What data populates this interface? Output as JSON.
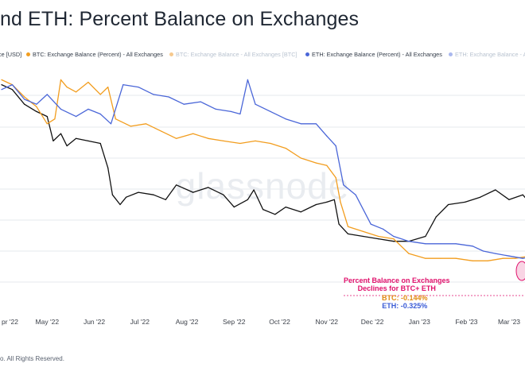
{
  "header": {
    "title": "nd ETH: Percent Balance on Exchanges"
  },
  "legend": [
    {
      "label": "ce [USD]",
      "color": "#6b7380",
      "faded": false
    },
    {
      "label": "BTC: Exchange Balance (Percent) - All Exchanges",
      "color": "#f29d1e",
      "faded": false
    },
    {
      "label": "BTC: Exchange Balance - All Exchanges [BTC]",
      "color": "#f6c98e",
      "faded": true
    },
    {
      "label": "ETH: Exchange Balance (Percent) - All Exchanges",
      "color": "#4a66d8",
      "faded": false
    },
    {
      "label": "ETH: Exchange Balance - All Exchan",
      "color": "#aab8ee",
      "faded": true
    }
  ],
  "watermark": "glassnode",
  "annotation": {
    "line1": "Percent Balance on Exchanges",
    "line2": "Declines for BTC+ ETH",
    "btc": "BTC: -0.144%",
    "eth": "ETH: -0.325%",
    "color_accent": "#e0116c",
    "color_btc": "#e08a10",
    "color_eth": "#3a5bd6"
  },
  "footer": "o. All Rights Reserved.",
  "colors": {
    "price": "#111111",
    "btc": "#f29d1e",
    "eth": "#4a66d8",
    "grid": "#e6e9ee",
    "axis_text": "#3a3f48"
  },
  "chart_data": {
    "type": "line",
    "title": "nd ETH: Percent Balance on Exchanges",
    "x_tick_labels": [
      "pr '22",
      "May '22",
      "Jun '22",
      "Jul '22",
      "Aug '22",
      "Sep '22",
      "Oct '22",
      "Nov '22",
      "Dec '22",
      "Jan '23",
      "Feb '23",
      "Mar '23"
    ],
    "x_range": [
      "2022-04-01",
      "2023-03-31"
    ],
    "y_scale": "relative (no axis labels visible)",
    "y_range": [
      0,
      100
    ],
    "grid": true,
    "legend_position": "top",
    "series": [
      {
        "name": "ce [USD]",
        "color": "#111111",
        "x": [
          "2022-04-01",
          "2022-04-08",
          "2022-04-16",
          "2022-04-24",
          "2022-05-01",
          "2022-05-05",
          "2022-05-10",
          "2022-05-14",
          "2022-05-20",
          "2022-05-28",
          "2022-06-05",
          "2022-06-10",
          "2022-06-13",
          "2022-06-18",
          "2022-06-22",
          "2022-06-30",
          "2022-07-10",
          "2022-07-18",
          "2022-07-25",
          "2022-08-05",
          "2022-08-15",
          "2022-08-25",
          "2022-09-01",
          "2022-09-10",
          "2022-09-14",
          "2022-09-20",
          "2022-09-28",
          "2022-10-05",
          "2022-10-15",
          "2022-10-25",
          "2022-11-01",
          "2022-11-06",
          "2022-11-09",
          "2022-11-15",
          "2022-11-25",
          "2022-12-05",
          "2022-12-15",
          "2022-12-25",
          "2023-01-05",
          "2023-01-12",
          "2023-01-20",
          "2023-01-31",
          "2023-02-10",
          "2023-02-20",
          "2023-03-01",
          "2023-03-10",
          "2023-03-17",
          "2023-03-24",
          "2023-03-31"
        ],
        "values": [
          93,
          91,
          85,
          82,
          80,
          70,
          73,
          68,
          71,
          70,
          69,
          59,
          48,
          44,
          47,
          49,
          48,
          46,
          52,
          49,
          51,
          48,
          43,
          46,
          50,
          42,
          40,
          43,
          41,
          44,
          45,
          46,
          36,
          32,
          31,
          30,
          29,
          29,
          31,
          39,
          44,
          45,
          47,
          50,
          46,
          48,
          43,
          41,
          45
        ]
      },
      {
        "name": "BTC: Exchange Balance (Percent) - All Exchanges",
        "color": "#f29d1e",
        "x": [
          "2022-04-01",
          "2022-04-08",
          "2022-04-16",
          "2022-04-24",
          "2022-05-01",
          "2022-05-06",
          "2022-05-10",
          "2022-05-14",
          "2022-05-20",
          "2022-05-28",
          "2022-06-05",
          "2022-06-10",
          "2022-06-15",
          "2022-06-25",
          "2022-07-05",
          "2022-07-15",
          "2022-07-25",
          "2022-08-05",
          "2022-08-15",
          "2022-08-25",
          "2022-09-05",
          "2022-09-15",
          "2022-09-25",
          "2022-10-05",
          "2022-10-15",
          "2022-10-25",
          "2022-11-01",
          "2022-11-07",
          "2022-11-10",
          "2022-11-15",
          "2022-11-25",
          "2022-12-05",
          "2022-12-15",
          "2022-12-25",
          "2023-01-05",
          "2023-01-15",
          "2023-01-25",
          "2023-02-05",
          "2023-02-15",
          "2023-02-25",
          "2023-03-05",
          "2023-03-15",
          "2023-03-20",
          "2023-03-27",
          "2023-03-31"
        ],
        "values": [
          95,
          93,
          88,
          84,
          77,
          79,
          95,
          92,
          90,
          94,
          89,
          92,
          79,
          76,
          77,
          74,
          71,
          73,
          71,
          70,
          69,
          70,
          69,
          67,
          63,
          61,
          60,
          55,
          45,
          35,
          33,
          31,
          30,
          24,
          22,
          22,
          22,
          21,
          21,
          22,
          22,
          23,
          23,
          21,
          20
        ]
      },
      {
        "name": "ETH: Exchange Balance (Percent) - All Exchanges",
        "color": "#4a66d8",
        "x": [
          "2022-04-01",
          "2022-04-08",
          "2022-04-16",
          "2022-04-24",
          "2022-05-01",
          "2022-05-10",
          "2022-05-20",
          "2022-05-28",
          "2022-06-05",
          "2022-06-12",
          "2022-06-20",
          "2022-06-30",
          "2022-07-10",
          "2022-07-20",
          "2022-07-30",
          "2022-08-10",
          "2022-08-20",
          "2022-08-30",
          "2022-09-05",
          "2022-09-10",
          "2022-09-15",
          "2022-09-25",
          "2022-10-05",
          "2022-10-15",
          "2022-10-25",
          "2022-11-01",
          "2022-11-07",
          "2022-11-12",
          "2022-11-20",
          "2022-11-30",
          "2022-12-08",
          "2022-12-15",
          "2022-12-25",
          "2023-01-05",
          "2023-01-15",
          "2023-01-25",
          "2023-02-05",
          "2023-02-12",
          "2023-02-20",
          "2023-03-01",
          "2023-03-10",
          "2023-03-20",
          "2023-03-27",
          "2023-03-31"
        ],
        "values": [
          91,
          93,
          87,
          85,
          89,
          83,
          80,
          83,
          81,
          77,
          93,
          92,
          89,
          88,
          85,
          86,
          83,
          82,
          81,
          95,
          85,
          82,
          79,
          77,
          77,
          72,
          68,
          52,
          48,
          36,
          34,
          31,
          29,
          28,
          28,
          28,
          27,
          25,
          24,
          23,
          22,
          23,
          18,
          17
        ]
      }
    ]
  }
}
